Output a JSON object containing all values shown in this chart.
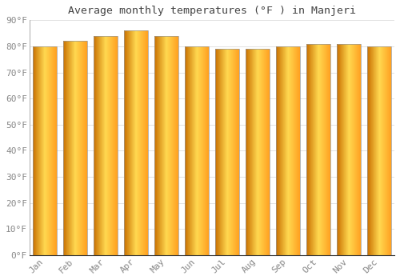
{
  "months": [
    "Jan",
    "Feb",
    "Mar",
    "Apr",
    "May",
    "Jun",
    "Jul",
    "Aug",
    "Sep",
    "Oct",
    "Nov",
    "Dec"
  ],
  "values": [
    80,
    82,
    84,
    86,
    84,
    80,
    79,
    79,
    80,
    81,
    81,
    80
  ],
  "title": "Average monthly temperatures (°F ) in Manjeri",
  "ylim": [
    0,
    90
  ],
  "yticks": [
    0,
    10,
    20,
    30,
    40,
    50,
    60,
    70,
    80,
    90
  ],
  "ytick_labels": [
    "0°F",
    "10°F",
    "20°F",
    "30°F",
    "40°F",
    "50°F",
    "60°F",
    "70°F",
    "80°F",
    "90°F"
  ],
  "bar_color_left": "#C87000",
  "bar_color_center": "#FFD04A",
  "bar_color_right": "#FFA500",
  "bar_edge_color": "#999999",
  "background_color": "#FFFFFF",
  "grid_color": "#DDDDDD",
  "title_fontsize": 9.5,
  "tick_fontsize": 8,
  "title_color": "#444444",
  "tick_color": "#888888",
  "bar_width": 0.78
}
